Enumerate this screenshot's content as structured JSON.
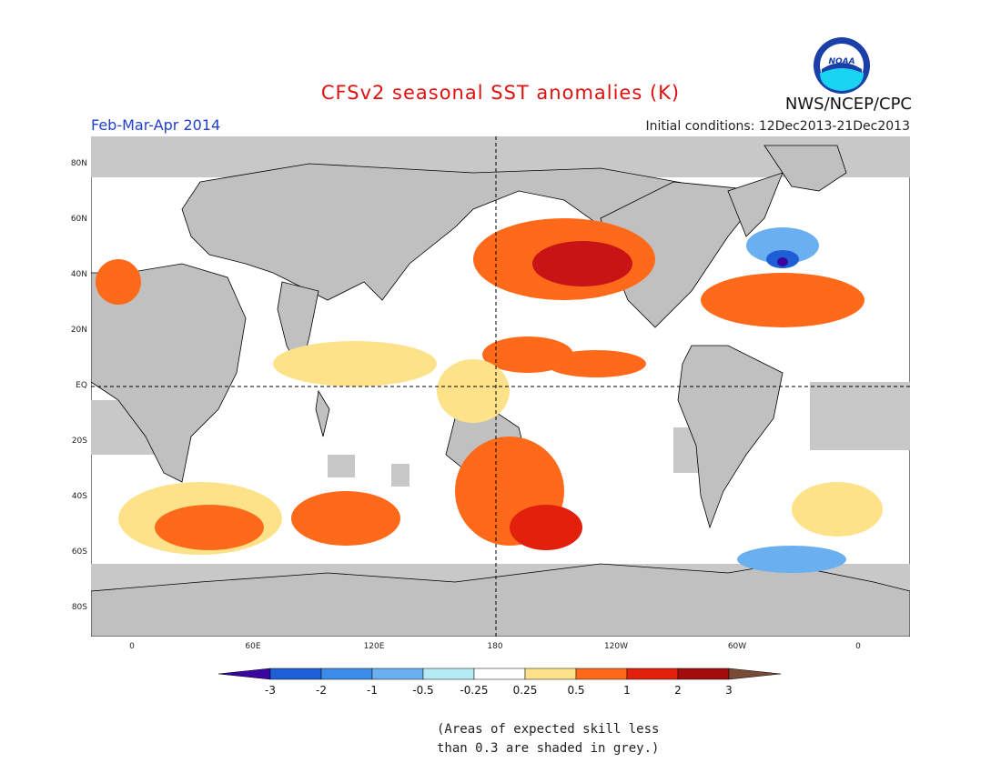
{
  "header": {
    "title": "CFSv2 seasonal SST anomalies (K)",
    "period": "Feb-Mar-Apr 2014",
    "initial_conditions": "Initial conditions: 12Dec2013-21Dec2013",
    "agency": "NWS/NCEP/CPC",
    "logo_text": "NOAA"
  },
  "map": {
    "lat_labels": [
      "80N",
      "60N",
      "40N",
      "20N",
      "EQ",
      "20S",
      "40S",
      "60S",
      "80S"
    ],
    "lon_labels": [
      "0",
      "60E",
      "120E",
      "180",
      "120W",
      "60W",
      "0"
    ],
    "colors": {
      "land": "#c0c0c0",
      "ocean_neutral": "#ffffff",
      "grey_skill": "#c8c8c8"
    }
  },
  "colorbar": {
    "labels": [
      "-3",
      "-2",
      "-1",
      "-0.5",
      "-0.25",
      "0.25",
      "0.5",
      "1",
      "2",
      "3"
    ],
    "colors": [
      "#3a06a0",
      "#1f5fd6",
      "#3a8ce8",
      "#6ab0f0",
      "#b4ecf6",
      "#ffffff",
      "#fde28a",
      "#ff6a1a",
      "#e2200c",
      "#a30c0c",
      "#7a4a38"
    ]
  },
  "footnote": {
    "line1": "(Areas of expected skill less",
    "line2": "than 0.3 are shaded in grey.)"
  }
}
